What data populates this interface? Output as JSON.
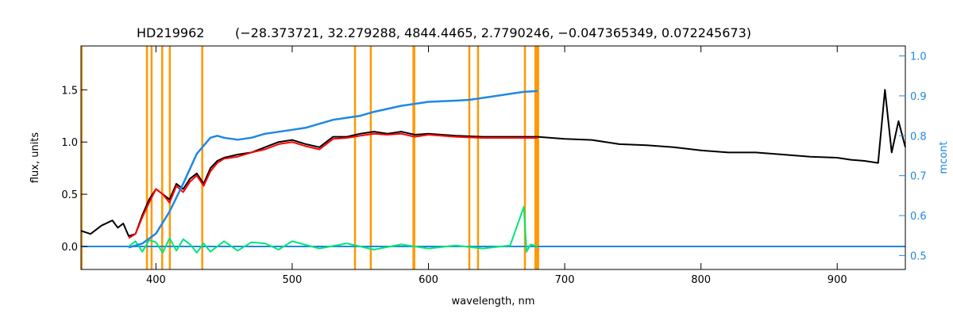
{
  "chart_data": {
    "type": "line",
    "title": "HD219962",
    "subtitle": "(−28.373721, 32.279288, 4844.4465, 2.7790246, −0.047365349, 0.072245673)",
    "xlabel": "wavelength, nm",
    "ylabel": "flux, units",
    "ylabel_right": "mcont",
    "xlim": [
      345,
      950
    ],
    "ylim": [
      -0.22,
      1.92
    ],
    "ylim_right": [
      0.465,
      1.025
    ],
    "x_ticks": [
      400,
      500,
      600,
      700,
      800,
      900
    ],
    "y_ticks": [
      0.0,
      0.5,
      1.0,
      1.5
    ],
    "y_tick_labels": [
      "0.0",
      "0.5",
      "1.0",
      "1.5"
    ],
    "y_ticks_right": [
      0.5,
      0.6,
      0.7,
      0.8,
      0.9,
      1.0
    ],
    "y_tick_labels_right": [
      "0.5",
      "0.6",
      "0.7",
      "0.8",
      "0.9",
      "1.0"
    ],
    "vertical_lines": [
      345.5,
      393.4,
      396.8,
      404.6,
      410.2,
      434.0,
      546.1,
      557.7,
      589.0,
      589.6,
      630.0,
      636.4,
      670.8,
      678.5,
      679.8,
      680.5
    ],
    "series": [
      {
        "color": "#000000",
        "x": [
          345,
          352,
          360,
          368,
          372,
          376,
          380,
          385,
          390,
          395,
          400,
          405,
          410,
          415,
          420,
          425,
          430,
          435,
          440,
          445,
          450,
          460,
          470,
          480,
          490,
          500,
          510,
          520,
          530,
          540,
          550,
          560,
          570,
          580,
          590,
          600,
          620,
          640,
          660,
          680,
          700,
          720,
          740,
          760,
          780,
          800,
          820,
          840,
          860,
          880,
          900,
          910,
          920,
          930,
          935,
          940,
          945,
          950
        ],
        "y": [
          0.15,
          0.12,
          0.2,
          0.25,
          0.18,
          0.22,
          0.1,
          0.12,
          0.3,
          0.45,
          0.55,
          0.5,
          0.45,
          0.6,
          0.55,
          0.65,
          0.7,
          0.6,
          0.75,
          0.82,
          0.85,
          0.88,
          0.9,
          0.95,
          1.0,
          1.02,
          0.98,
          0.95,
          1.05,
          1.05,
          1.08,
          1.1,
          1.08,
          1.1,
          1.07,
          1.08,
          1.06,
          1.05,
          1.05,
          1.05,
          1.03,
          1.02,
          0.98,
          0.97,
          0.95,
          0.92,
          0.9,
          0.9,
          0.88,
          0.86,
          0.85,
          0.83,
          0.82,
          0.8,
          1.5,
          0.9,
          1.2,
          0.95
        ]
      },
      {
        "color": "#ff0000",
        "x": [
          380,
          385,
          390,
          395,
          400,
          405,
          410,
          415,
          420,
          425,
          430,
          435,
          440,
          445,
          450,
          460,
          470,
          480,
          490,
          500,
          510,
          520,
          530,
          540,
          550,
          560,
          570,
          580,
          590,
          600,
          620,
          640,
          660,
          680
        ],
        "y": [
          0.08,
          0.12,
          0.28,
          0.42,
          0.55,
          0.5,
          0.42,
          0.58,
          0.52,
          0.62,
          0.68,
          0.58,
          0.72,
          0.8,
          0.84,
          0.86,
          0.9,
          0.93,
          0.98,
          1.0,
          0.96,
          0.93,
          1.03,
          1.04,
          1.06,
          1.08,
          1.07,
          1.08,
          1.05,
          1.07,
          1.05,
          1.04,
          1.04,
          1.04
        ]
      },
      {
        "color": "#1e88e5",
        "axis": "right",
        "x": [
          380,
          390,
          400,
          410,
          420,
          430,
          440,
          445,
          450,
          460,
          470,
          480,
          490,
          500,
          510,
          520,
          530,
          540,
          550,
          560,
          580,
          600,
          620,
          630,
          640,
          660,
          670,
          680
        ],
        "y": [
          0.52,
          0.53,
          0.555,
          0.61,
          0.68,
          0.755,
          0.795,
          0.8,
          0.795,
          0.79,
          0.795,
          0.805,
          0.81,
          0.815,
          0.82,
          0.83,
          0.84,
          0.845,
          0.85,
          0.86,
          0.875,
          0.885,
          0.888,
          0.89,
          0.895,
          0.905,
          0.91,
          0.912
        ]
      },
      {
        "color": "#1e88e5",
        "x": [
          345,
          380,
          680,
          800,
          820,
          900,
          930,
          950
        ],
        "y": [
          0.0,
          0.0,
          0.0,
          0.0,
          0.0,
          0.0,
          0.0,
          0.0
        ]
      },
      {
        "color": "#00e676",
        "x": [
          380,
          385,
          390,
          395,
          400,
          405,
          410,
          415,
          420,
          425,
          430,
          435,
          440,
          450,
          460,
          470,
          480,
          490,
          500,
          520,
          540,
          560,
          580,
          600,
          620,
          640,
          660,
          670,
          672,
          675,
          680
        ],
        "y": [
          0.0,
          0.05,
          -0.05,
          0.06,
          0.04,
          -0.06,
          0.08,
          -0.04,
          0.07,
          0.02,
          -0.06,
          0.03,
          -0.05,
          0.05,
          -0.04,
          0.04,
          0.03,
          -0.03,
          0.05,
          -0.02,
          0.03,
          -0.03,
          0.02,
          -0.02,
          0.01,
          -0.02,
          0.01,
          0.38,
          -0.05,
          0.02,
          0.0
        ]
      }
    ]
  }
}
